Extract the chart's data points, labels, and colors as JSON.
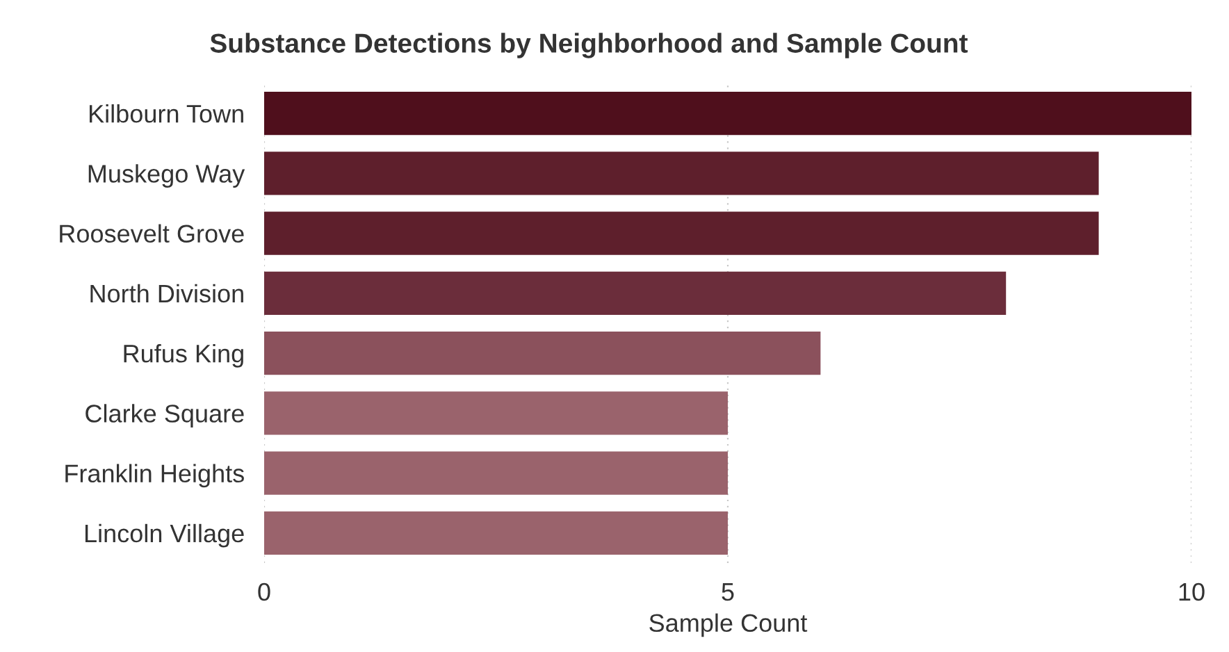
{
  "chart_data": {
    "type": "bar",
    "orientation": "horizontal",
    "title": "Substance Detections by Neighborhood and Sample Count",
    "xlabel": "Sample Count",
    "categories": [
      "Kilbourn Town",
      "Muskego Way",
      "Roosevelt Grove",
      "North Division",
      "Rufus King",
      "Clarke Square",
      "Franklin Heights",
      "Lincoln Village"
    ],
    "values": [
      10,
      9,
      9,
      8,
      6,
      5,
      5,
      5
    ],
    "colors": [
      "#4f0f1c",
      "#5e1f2c",
      "#5e1f2c",
      "#6b2d3b",
      "#8b515c",
      "#9a636c",
      "#9a636c",
      "#9a636c"
    ],
    "xlim": [
      0,
      10
    ],
    "xticks": [
      0,
      5,
      10
    ],
    "grid": "x"
  }
}
